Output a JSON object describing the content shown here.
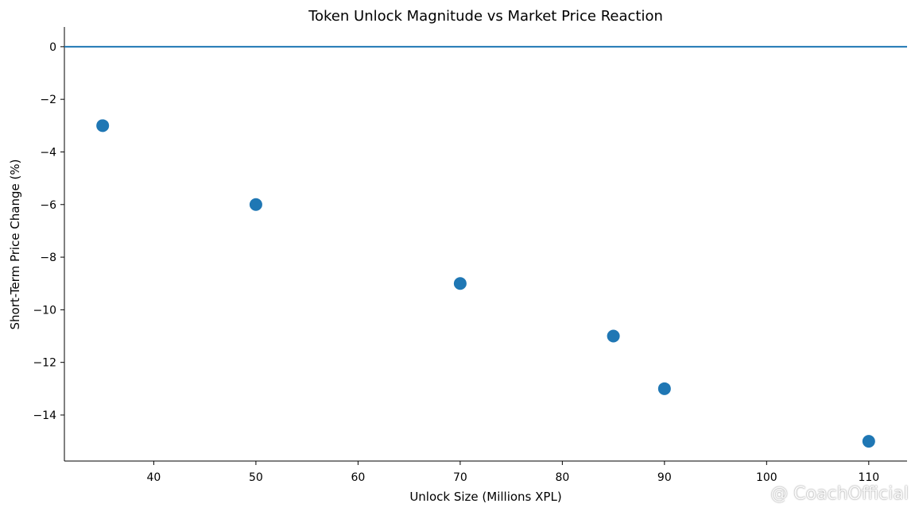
{
  "chart_data": {
    "type": "scatter",
    "title": "Token Unlock Magnitude vs Market Price Reaction",
    "xlabel": "Unlock Size (Millions XPL)",
    "ylabel": "Short-Term Price Change (%)",
    "points": [
      {
        "x": 35,
        "y": -3
      },
      {
        "x": 50,
        "y": -6
      },
      {
        "x": 70,
        "y": -9
      },
      {
        "x": 85,
        "y": -11
      },
      {
        "x": 90,
        "y": -13
      },
      {
        "x": 110,
        "y": -15
      }
    ],
    "xlim": [
      31.25,
      113.75
    ],
    "ylim": [
      -15.75,
      0.75
    ],
    "x_ticks": [
      40,
      50,
      60,
      70,
      80,
      90,
      100,
      110
    ],
    "y_ticks": [
      0,
      -2,
      -4,
      -6,
      -8,
      -10,
      -12,
      -14
    ],
    "x_tick_labels": [
      "40",
      "50",
      "60",
      "70",
      "80",
      "90",
      "100",
      "110"
    ],
    "y_tick_labels": [
      "0",
      "−2",
      "−4",
      "−6",
      "−8",
      "−10",
      "−12",
      "−14"
    ],
    "reference_line": {
      "y": 0
    },
    "grid": false,
    "legend": "none",
    "colors": {
      "points": "#1f77b4",
      "reference_line": "#1f77b4",
      "axes": "#000000"
    }
  },
  "watermark": {
    "text": "@ CoachOfficial",
    "icon": "binance-logo-icon"
  }
}
